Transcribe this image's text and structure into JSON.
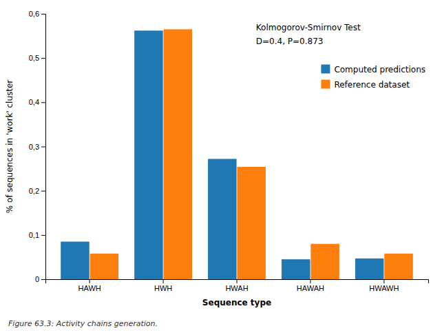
{
  "chart_data": {
    "type": "bar",
    "xlabel": "Sequence type",
    "ylabel": "% of sequences in 'work' cluster",
    "caption": "Figure 63.3: Activity chains generation.",
    "annotations": [
      "Kolmogorov-Smirnov Test",
      "D=0.4, P=0.873"
    ],
    "categories": [
      "HAWH",
      "HWH",
      "HWAH",
      "HAWAH",
      "HWAWH"
    ],
    "series": [
      {
        "name": "Computed predictions",
        "values": [
          0.085,
          0.562,
          0.272,
          0.045,
          0.047
        ]
      },
      {
        "name": "Reference dataset",
        "values": [
          0.058,
          0.565,
          0.254,
          0.08,
          0.058
        ]
      }
    ],
    "ylim": [
      0,
      0.6
    ],
    "yticks": [
      0,
      {
        "value": 0.1,
        "label": "0,1"
      },
      {
        "value": 0.2,
        "label": "0,2"
      },
      {
        "value": 0.3,
        "label": "0,3"
      },
      {
        "value": 0.4,
        "label": "0,4"
      },
      {
        "value": 0.5,
        "label": "0,5"
      },
      {
        "value": 0.6,
        "label": "0,6"
      }
    ],
    "legend": "upper right",
    "grid": false
  }
}
